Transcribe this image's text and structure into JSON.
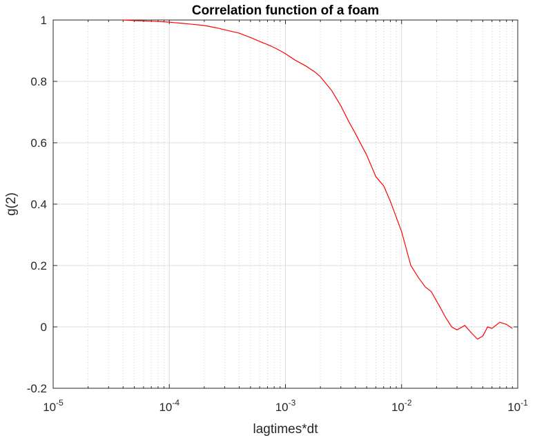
{
  "chart_data": {
    "type": "line",
    "title": "Correlation function of a foam",
    "xlabel": "lagtimes*dt",
    "ylabel": "g(2)",
    "xscale": "log",
    "xlim": [
      1e-05,
      0.1
    ],
    "ylim": [
      -0.2,
      1
    ],
    "grid": true,
    "minor_grid_x": true,
    "line_color": "#ff0000",
    "xticks": [
      {
        "base": "10",
        "exp": "-5"
      },
      {
        "base": "10",
        "exp": "-4"
      },
      {
        "base": "10",
        "exp": "-3"
      },
      {
        "base": "10",
        "exp": "-2"
      },
      {
        "base": "10",
        "exp": "-1"
      }
    ],
    "yticks": [
      "-0.2",
      "0",
      "0.2",
      "0.4",
      "0.6",
      "0.8",
      "1"
    ],
    "series": [
      {
        "x": [
          4e-05,
          5e-05,
          6e-05,
          7e-05,
          8e-05,
          0.0001,
          0.00012,
          0.00015,
          0.0002,
          0.00025,
          0.0003,
          0.0004,
          0.0005,
          0.0006,
          0.0007,
          0.0008,
          0.0009,
          0.001,
          0.0012,
          0.0015,
          0.0018,
          0.002,
          0.0025,
          0.003,
          0.0035,
          0.004,
          0.005,
          0.006,
          0.007,
          0.008,
          0.01,
          0.012,
          0.014,
          0.016,
          0.018,
          0.021,
          0.024,
          0.027,
          0.03,
          0.035,
          0.04,
          0.045,
          0.05,
          0.055,
          0.06,
          0.07,
          0.08,
          0.09
        ],
        "y": [
          1.0,
          0.998,
          0.997,
          0.996,
          0.995,
          0.993,
          0.99,
          0.987,
          0.982,
          0.975,
          0.968,
          0.957,
          0.943,
          0.93,
          0.92,
          0.91,
          0.9,
          0.89,
          0.87,
          0.85,
          0.83,
          0.815,
          0.77,
          0.72,
          0.67,
          0.63,
          0.56,
          0.49,
          0.46,
          0.41,
          0.31,
          0.2,
          0.16,
          0.13,
          0.115,
          0.07,
          0.03,
          0.0,
          -0.01,
          0.005,
          -0.02,
          -0.04,
          -0.03,
          0.0,
          -0.005,
          0.015,
          0.008,
          -0.005
        ]
      }
    ]
  }
}
